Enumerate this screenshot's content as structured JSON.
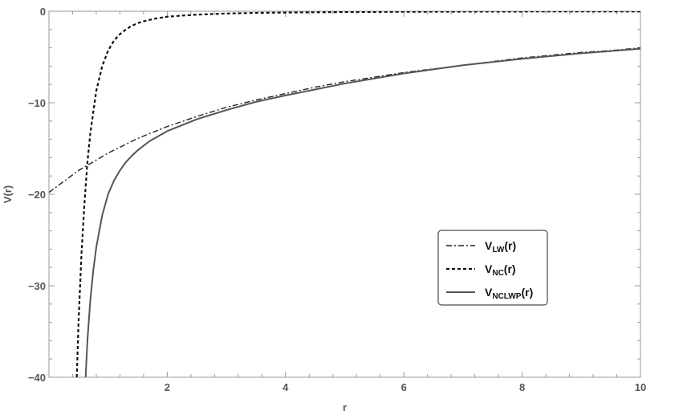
{
  "chart_data": {
    "type": "line",
    "title": "",
    "xlabel": "r",
    "ylabel": "V(r)",
    "xlim": [
      0,
      10
    ],
    "ylim": [
      -40,
      0
    ],
    "x_ticks": [
      2,
      4,
      6,
      8,
      10
    ],
    "y_ticks": [
      0,
      -10,
      -20,
      -30,
      -40
    ],
    "x_tick_labels": [
      "2",
      "4",
      "6",
      "8",
      "10"
    ],
    "y_tick_labels": [
      "0",
      "−10",
      "−20",
      "−30",
      "−40"
    ],
    "grid": false,
    "legend_position": "lower-right",
    "series": [
      {
        "label_main": "V",
        "label_sub": "LW",
        "label_tail": "(r)",
        "style": "dash-dot",
        "color": "#222222",
        "x": [
          0,
          0.5,
          1,
          1.5,
          2,
          2.5,
          3,
          3.5,
          4,
          4.5,
          5,
          5.5,
          6,
          6.5,
          7,
          7.5,
          8,
          8.5,
          9,
          9.5,
          10
        ],
        "y": [
          -19.8,
          -17.4,
          -15.5,
          -13.9,
          -12.6,
          -11.5,
          -10.5,
          -9.7,
          -9.0,
          -8.3,
          -7.7,
          -7.2,
          -6.7,
          -6.3,
          -5.9,
          -5.5,
          -5.1,
          -4.8,
          -4.5,
          -4.3,
          -4.0
        ]
      },
      {
        "label_main": "V",
        "label_sub": "NC",
        "label_tail": "(r)",
        "style": "dashed",
        "color": "#111111",
        "x": [
          0.47,
          0.5,
          0.55,
          0.6,
          0.65,
          0.7,
          0.8,
          0.9,
          1.0,
          1.1,
          1.2,
          1.3,
          1.4,
          1.5,
          1.6,
          1.8,
          2.0,
          2.2,
          2.5,
          3.0,
          3.5,
          4.0,
          5.0,
          6.0,
          7.0,
          8.0,
          9.0,
          10.0
        ],
        "y": [
          -40,
          -34,
          -26.5,
          -21.0,
          -16.5,
          -13.3,
          -8.7,
          -6.0,
          -4.3,
          -3.2,
          -2.5,
          -2.0,
          -1.6,
          -1.3,
          -1.1,
          -0.8,
          -0.6,
          -0.5,
          -0.37,
          -0.25,
          -0.18,
          -0.14,
          -0.09,
          -0.06,
          -0.04,
          -0.03,
          -0.02,
          -0.02
        ]
      },
      {
        "label_main": "V",
        "label_sub": "NCLWP",
        "label_tail": "(r)",
        "style": "solid",
        "color": "#555555",
        "x": [
          0.62,
          0.65,
          0.7,
          0.75,
          0.8,
          0.9,
          1.0,
          1.1,
          1.2,
          1.3,
          1.4,
          1.5,
          1.7,
          2.0,
          2.5,
          3.0,
          3.5,
          4.0,
          5.0,
          6.0,
          7.0,
          8.0,
          9.0,
          10.0
        ],
        "y": [
          -40,
          -36.0,
          -31.5,
          -28.3,
          -25.8,
          -22.3,
          -20.0,
          -18.5,
          -17.4,
          -16.5,
          -15.8,
          -15.2,
          -14.2,
          -13.1,
          -11.8,
          -10.8,
          -9.9,
          -9.2,
          -7.9,
          -6.8,
          -5.9,
          -5.2,
          -4.6,
          -4.1
        ]
      }
    ]
  }
}
